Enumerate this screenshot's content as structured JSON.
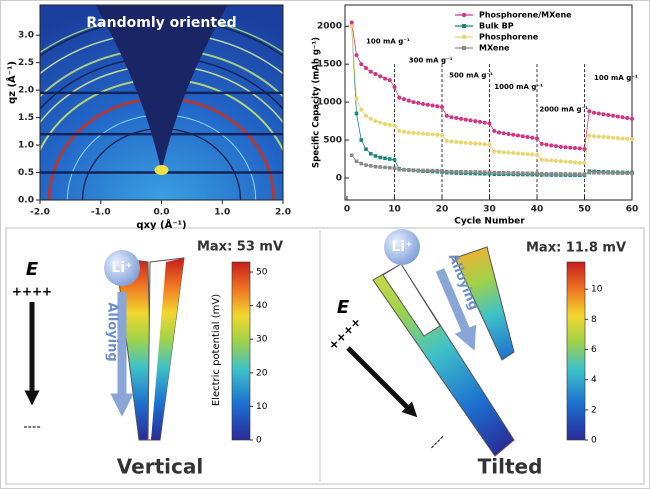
{
  "chart_data": [
    {
      "type": "image",
      "title": "Randomly oriented",
      "x_label": "qxy (Å⁻¹)",
      "y_label": "qz (Å⁻¹)",
      "xlim": [
        -2.0,
        2.0
      ],
      "xticks": [
        {
          "value": -2,
          "label": "-2.0"
        },
        {
          "value": -1,
          "label": "-1.0"
        },
        {
          "value": 0,
          "label": "0.0"
        },
        {
          "value": 1,
          "label": "1.0"
        },
        {
          "value": 2,
          "label": "2.0"
        }
      ],
      "ylim": [
        0,
        3.55
      ],
      "yticks": [
        {
          "value": 0,
          "label": "0.0"
        },
        0.5,
        {
          "value": 1,
          "label": "1.0"
        },
        1.5,
        {
          "value": 2,
          "label": "2.0"
        },
        2.5,
        {
          "value": 3,
          "label": "3.0"
        }
      ]
    },
    {
      "type": "line",
      "x_label": "Cycle Number",
      "y_label": "Specific Capacity (mAh g⁻¹)",
      "xlim": [
        0,
        60
      ],
      "xticks": [
        0,
        10,
        20,
        30,
        40,
        50,
        60
      ],
      "ylim": [
        -290,
        2280
      ],
      "yticks": [
        0,
        500,
        1000,
        1500,
        2000
      ],
      "legend": "upper right",
      "dividers": [
        10,
        20,
        30,
        40,
        50
      ],
      "annotations": [
        "100 mA g⁻¹",
        "300 mA g⁻¹",
        "500 mA g⁻¹",
        "1000 mA g⁻¹",
        "2000 mA g⁻¹",
        "100 mA g⁻¹"
      ],
      "x": [
        1,
        2,
        3,
        4,
        5,
        6,
        7,
        8,
        9,
        10,
        11,
        12,
        13,
        14,
        15,
        16,
        17,
        18,
        19,
        20,
        21,
        22,
        23,
        24,
        25,
        26,
        27,
        28,
        29,
        30,
        31,
        32,
        33,
        34,
        35,
        36,
        37,
        38,
        39,
        40,
        41,
        42,
        43,
        44,
        45,
        46,
        47,
        48,
        49,
        50,
        51,
        52,
        53,
        54,
        55,
        56,
        57,
        58,
        59,
        60
      ],
      "series": [
        {
          "name": "Phosphorene/MXene",
          "color": "#d63384",
          "values": [
            2050,
            1620,
            1500,
            1450,
            1400,
            1370,
            1340,
            1310,
            1290,
            1200,
            1060,
            1040,
            1020,
            1000,
            990,
            975,
            965,
            955,
            945,
            935,
            820,
            800,
            790,
            780,
            770,
            760,
            750,
            740,
            730,
            720,
            620,
            600,
            590,
            580,
            570,
            560,
            550,
            540,
            530,
            520,
            450,
            440,
            430,
            420,
            410,
            405,
            400,
            395,
            390,
            380,
            880,
            860,
            850,
            840,
            830,
            820,
            810,
            800,
            790,
            780
          ]
        },
        {
          "name": "Bulk BP",
          "color": "#1a8a78",
          "values": [
            2000,
            850,
            500,
            380,
            320,
            290,
            270,
            260,
            250,
            240,
            120,
            110,
            105,
            100,
            95,
            90,
            88,
            85,
            82,
            80,
            70,
            68,
            66,
            64,
            62,
            60,
            58,
            57,
            56,
            55,
            50,
            50,
            49,
            48,
            47,
            46,
            45,
            45,
            44,
            44,
            40,
            40,
            39,
            39,
            38,
            38,
            37,
            37,
            36,
            36,
            90,
            85,
            82,
            80,
            78,
            76,
            75,
            74,
            73,
            72
          ]
        },
        {
          "name": "Phosphorene",
          "color": "#e8d770",
          "values": [
            2000,
            1050,
            900,
            820,
            780,
            750,
            730,
            710,
            700,
            690,
            620,
            610,
            600,
            595,
            590,
            585,
            580,
            575,
            570,
            565,
            490,
            480,
            475,
            470,
            465,
            460,
            455,
            450,
            445,
            440,
            350,
            345,
            340,
            335,
            330,
            325,
            320,
            315,
            310,
            305,
            240,
            235,
            230,
            225,
            220,
            215,
            210,
            205,
            200,
            200,
            560,
            550,
            545,
            540,
            535,
            530,
            525,
            520,
            515,
            510
          ]
        },
        {
          "name": "MXene",
          "color": "#8a8a8a",
          "values": [
            300,
            220,
            190,
            170,
            160,
            150,
            145,
            140,
            135,
            130,
            110,
            108,
            106,
            104,
            102,
            100,
            99,
            98,
            97,
            96,
            85,
            84,
            83,
            82,
            81,
            80,
            79,
            78,
            77,
            76,
            70,
            69,
            68,
            67,
            66,
            65,
            64,
            63,
            62,
            61,
            55,
            55,
            54,
            54,
            53,
            53,
            52,
            52,
            51,
            51,
            70,
            69,
            68,
            67,
            66,
            65,
            64,
            63,
            62,
            60
          ]
        }
      ]
    }
  ],
  "diagrams": [
    {
      "caption": "Vertical",
      "field": "E",
      "plus": "++++",
      "minus": "----",
      "ion": "Li⁺",
      "process": "Alloying",
      "colorbar": {
        "title": "Max: 53 mV",
        "label": "Electric potential (mV)",
        "lim": [
          0,
          53
        ],
        "ticks": [
          0,
          10,
          20,
          30,
          40,
          50
        ]
      }
    },
    {
      "caption": "Tilted",
      "field": "E",
      "plus": "++++",
      "minus": "----",
      "ion": "Li⁺",
      "process": "Alloying",
      "colorbar": {
        "title": "Max: 11.8 mV",
        "lim": [
          0,
          11.8
        ],
        "ticks": [
          0,
          2,
          4,
          6,
          8,
          10
        ]
      }
    }
  ]
}
